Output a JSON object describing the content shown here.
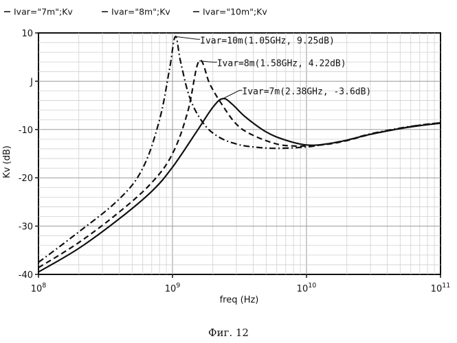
{
  "chart_data": {
    "type": "line",
    "x_scale": "log",
    "xlim": [
      100000000.0,
      100000000000.0
    ],
    "ylim": [
      -40,
      10
    ],
    "xlabel": "freq (Hz)",
    "ylabel": "Kv (dB)",
    "grid": true,
    "legend_position": "top-left",
    "x_ticks": [
      {
        "value": 100000000.0,
        "base": "10",
        "exp": "8"
      },
      {
        "value": 1000000000.0,
        "base": "10",
        "exp": "9"
      },
      {
        "value": 10000000000.0,
        "base": "10",
        "exp": "10"
      },
      {
        "value": 100000000000.0,
        "base": "10",
        "exp": "11"
      }
    ],
    "y_ticks": [
      {
        "value": 10,
        "label": "10"
      },
      {
        "value": 0,
        "label": "J"
      },
      {
        "value": -10,
        "label": "-10"
      },
      {
        "value": -20,
        "label": "-20"
      },
      {
        "value": -30,
        "label": "-30"
      },
      {
        "value": -40,
        "label": "-40"
      }
    ],
    "series": [
      {
        "name": "Ivar=\"7m\";Kv",
        "style": "solid",
        "x": [
          100000000.0,
          200000000.0,
          400000000.0,
          700000000.0,
          1000000000.0,
          1500000000.0,
          2000000000.0,
          2380000000.0,
          2800000000.0,
          3500000000.0,
          5000000000.0,
          7000000000.0,
          10000000000.0,
          14000000000.0,
          20000000000.0,
          30000000000.0,
          50000000000.0,
          70000000000.0,
          100000000000.0
        ],
        "y": [
          -39.5,
          -34.6,
          -28.5,
          -22.8,
          -17.8,
          -10.6,
          -5.4,
          -3.6,
          -4.8,
          -7.4,
          -10.5,
          -12.2,
          -13.2,
          -13.0,
          -12.2,
          -11.0,
          -9.8,
          -9.2,
          -8.7
        ]
      },
      {
        "name": "Ivar=\"8m\";Kv",
        "style": "dashed",
        "x": [
          100000000.0,
          200000000.0,
          400000000.0,
          700000000.0,
          1000000000.0,
          1300000000.0,
          1580000000.0,
          1900000000.0,
          2300000000.0,
          3000000000.0,
          4000000000.0,
          6000000000.0,
          8000000000.0,
          10000000000.0,
          14000000000.0,
          20000000000.0,
          30000000000.0,
          50000000000.0,
          70000000000.0,
          100000000000.0
        ],
        "y": [
          -38.6,
          -33.4,
          -27.1,
          -21.0,
          -15.0,
          -6.3,
          4.2,
          -0.6,
          -4.5,
          -8.9,
          -11.2,
          -13.0,
          -13.4,
          -13.4,
          -13.1,
          -12.3,
          -11.0,
          -9.8,
          -9.1,
          -8.6
        ]
      },
      {
        "name": "Ivar=\"10m\";Kv",
        "style": "dashdot",
        "x": [
          100000000.0,
          200000000.0,
          400000000.0,
          600000000.0,
          800000000.0,
          950000000.0,
          1050000000.0,
          1150000000.0,
          1350000000.0,
          1700000000.0,
          2200000000.0,
          3000000000.0,
          4000000000.0,
          6000000000.0,
          10000000000.0,
          14000000000.0,
          20000000000.0,
          30000000000.0,
          50000000000.0,
          70000000000.0,
          100000000000.0
        ],
        "y": [
          -37.5,
          -31.2,
          -24.4,
          -18.0,
          -8.0,
          2.5,
          9.25,
          4.0,
          -3.5,
          -8.7,
          -11.5,
          -13.0,
          -13.6,
          -13.9,
          -13.6,
          -13.0,
          -12.2,
          -10.9,
          -9.7,
          -9.1,
          -8.6
        ]
      }
    ],
    "annotations": [
      {
        "text": "Ivar=10m(1.05GHz, 9.25dB)",
        "x": 1050000000.0,
        "y": 9.25
      },
      {
        "text": "Ivar=8m(1.58GHz, 4.22dB)",
        "x": 1580000000.0,
        "y": 4.22
      },
      {
        "text": "Ivar=7m(2.38GHz, -3.6dB)",
        "x": 2380000000.0,
        "y": -3.6
      }
    ]
  },
  "caption": "Фиг. 12"
}
